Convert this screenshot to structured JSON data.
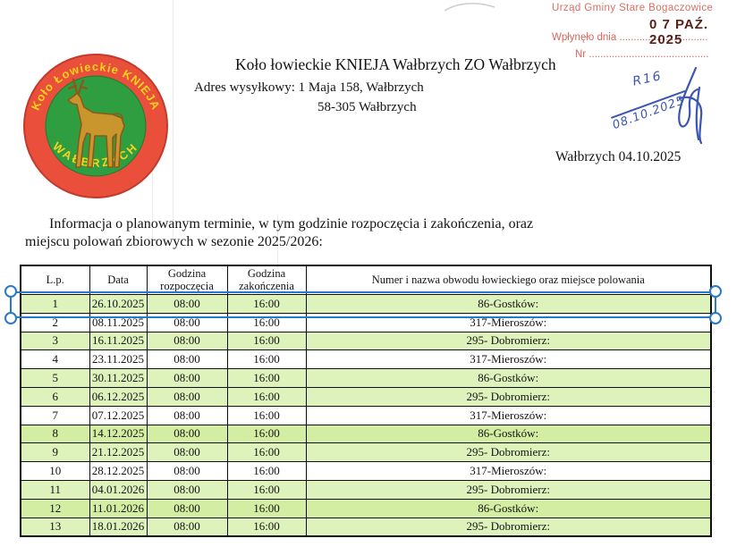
{
  "stamp": {
    "office_line": "Urząd Gminy Stare Bogaczowice",
    "received_label": "Wpłynęło dnia",
    "received_dots": "...............................",
    "date_stamp": "0 7 PAŹ. 2025",
    "nr_label": "Nr",
    "nr_dots": "..........................................",
    "color": "#cf4a3c"
  },
  "header": {
    "title": "Koło łowieckie KNIEJA Wałbrzych ZO Wałbrzych",
    "address_line": "Adres wysyłkowy: 1 Maja 158, Wałbrzych",
    "postal_line": "58-305 Wałbrzych",
    "place_date": "Wałbrzych 04.10.2025"
  },
  "handwriting": {
    "ref": "R16",
    "date": "08.10.2025",
    "color": "#3b55b2"
  },
  "logo": {
    "arc_top": "Koło Łowieckie KNIEJA",
    "arc_bottom": "WAŁBRZYCH",
    "ring_color": "#e94f3a",
    "center_color": "#2f9e41",
    "text_color": "#f7d31b",
    "deer_color": "#c9962d"
  },
  "intro": {
    "line1": "Informacja o planowanym terminie, w tym godzinie rozpoczęcia i zakończenia, oraz",
    "line2": "miejscu polowań zbiorowych w sezonie 2025/2026:"
  },
  "table": {
    "headers": [
      "L.p.",
      "Data",
      "Godzina rozpoczęcia",
      "Godzina zakończenia",
      "Numer i nazwa obwodu łowieckiego oraz miejsce polowania"
    ],
    "highlight_color": "#def2bb",
    "highlight_bright_color": "#d3eda2",
    "rows": [
      {
        "lp": "1",
        "date": "26.10.2025",
        "start": "08:00",
        "end": "16:00",
        "area": "86-Gostków:",
        "hl": 1
      },
      {
        "lp": "2",
        "date": "08.11.2025",
        "start": "08:00",
        "end": "16:00",
        "area": "317-Mieroszów:",
        "hl": 0
      },
      {
        "lp": "3",
        "date": "16.11.2025",
        "start": "08:00",
        "end": "16:00",
        "area": "295- Dobromierz:",
        "hl": 1
      },
      {
        "lp": "4",
        "date": "23.11.2025",
        "start": "08:00",
        "end": "16:00",
        "area": "317-Mieroszów:",
        "hl": 0
      },
      {
        "lp": "5",
        "date": "30.11.2025",
        "start": "08:00",
        "end": "16:00",
        "area": "86-Gostków:",
        "hl": 1
      },
      {
        "lp": "6",
        "date": "06.12.2025",
        "start": "08:00",
        "end": "16:00",
        "area": "295- Dobromierz:",
        "hl": 1
      },
      {
        "lp": "7",
        "date": "07.12.2025",
        "start": "08:00",
        "end": "16:00",
        "area": "317-Mieroszów:",
        "hl": 0
      },
      {
        "lp": "8",
        "date": "14.12.2025",
        "start": "08:00",
        "end": "16:00",
        "area": "86-Gostków:",
        "hl": 2
      },
      {
        "lp": "9",
        "date": "21.12.2025",
        "start": "08:00",
        "end": "16:00",
        "area": "295- Dobromierz:",
        "hl": 1
      },
      {
        "lp": "10",
        "date": "28.12.2025",
        "start": "08:00",
        "end": "16:00",
        "area": "317-Mieroszów:",
        "hl": 0
      },
      {
        "lp": "11",
        "date": "04.01.2026",
        "start": "08:00",
        "end": "16:00",
        "area": "295- Dobromierz:",
        "hl": 1
      },
      {
        "lp": "12",
        "date": "11.01.2026",
        "start": "08:00",
        "end": "16:00",
        "area": "86-Gostków:",
        "hl": 2
      },
      {
        "lp": "13",
        "date": "18.01.2026",
        "start": "08:00",
        "end": "16:00",
        "area": "295- Dobromierz:",
        "hl": 1
      }
    ]
  },
  "selection": {
    "color": "#2878cc"
  }
}
